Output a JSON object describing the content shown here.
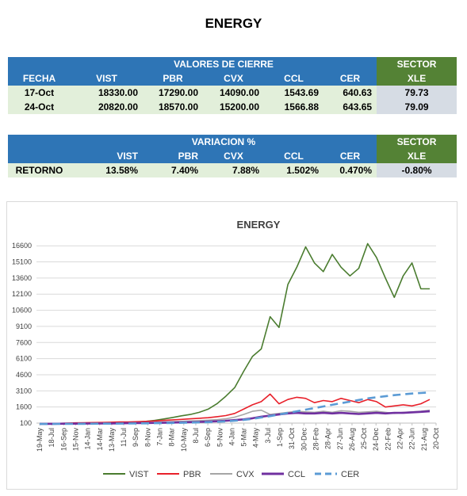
{
  "page_title": "ENERGY",
  "cierre": {
    "group_header": "VALORES DE CIERRE",
    "sector_header": "SECTOR",
    "columns": [
      "FECHA",
      "VIST",
      "PBR",
      "CVX",
      "CCL",
      "CER"
    ],
    "sector_column": "XLE",
    "rows": [
      {
        "fecha": "17-Oct",
        "vist": "18330.00",
        "pbr": "17290.00",
        "cvx": "14090.00",
        "ccl": "1543.69",
        "cer": "640.63",
        "xle": "79.73"
      },
      {
        "fecha": "24-Oct",
        "vist": "20820.00",
        "pbr": "18570.00",
        "cvx": "15200.00",
        "ccl": "1566.88",
        "cer": "643.65",
        "xle": "79.09"
      }
    ]
  },
  "variacion": {
    "group_header": "VARIACION %",
    "sector_header": "SECTOR",
    "columns": [
      "",
      "VIST",
      "PBR",
      "CVX",
      "CCL",
      "CER"
    ],
    "sector_column": "XLE",
    "row": {
      "label": "RETORNO",
      "vist": "13.58%",
      "pbr": "7.40%",
      "cvx": "7.88%",
      "ccl": "1.502%",
      "cer": "0.470%",
      "xle": "-0.80%"
    }
  },
  "colors": {
    "header_blue": "#2e75b6",
    "sector_green": "#548235",
    "row_green": "#e2efda",
    "row_gray": "#d6dce4"
  },
  "chart_data": {
    "type": "line",
    "title": "ENERGY",
    "ylim": [
      100,
      17500
    ],
    "yticks": [
      100,
      1600,
      3100,
      4600,
      6100,
      7600,
      9100,
      10600,
      12100,
      13600,
      15100,
      16600
    ],
    "xticks": [
      "19-May",
      "18-Jul",
      "16-Sep",
      "15-Nov",
      "14-Jan",
      "14-Mar",
      "13-May",
      "11-Jul",
      "9-Sep",
      "8-Nov",
      "7-Jan",
      "8-Mar",
      "10-May",
      "8-Jul",
      "6-Sep",
      "5-Nov",
      "4-Jan",
      "5-Mar",
      "4-May",
      "3-Jul",
      "1-Sep",
      "31-Oct",
      "30-Dec",
      "28-Feb",
      "28-Apr",
      "27-Jun",
      "26-Aug",
      "25-Oct",
      "24-Dec",
      "22-Feb",
      "22-Apr",
      "22-Jun",
      "21-Aug",
      "20-Oct"
    ],
    "grid": true,
    "legend_position": "bottom",
    "series": [
      {
        "name": "VIST",
        "color": "#4a7c2f",
        "dash": "",
        "width": 1.6,
        "values": [
          50,
          55,
          60,
          70,
          80,
          90,
          100,
          120,
          140,
          160,
          180,
          200,
          260,
          350,
          480,
          620,
          780,
          900,
          1100,
          1400,
          1900,
          2600,
          3400,
          4900,
          6300,
          7000,
          10000,
          9000,
          13000,
          14600,
          16500,
          15000,
          14200,
          15800,
          14600,
          13800,
          14500,
          16800,
          15500,
          13600,
          11800,
          13800,
          15000,
          12600,
          12600
        ]
      },
      {
        "name": "PBR",
        "color": "#e8202a",
        "dash": "",
        "width": 1.6,
        "values": [
          50,
          60,
          70,
          90,
          120,
          130,
          150,
          160,
          180,
          200,
          210,
          230,
          260,
          300,
          350,
          400,
          450,
          500,
          550,
          600,
          700,
          800,
          1000,
          1400,
          1800,
          2100,
          2800,
          1900,
          2300,
          2500,
          2400,
          2000,
          2200,
          2100,
          2400,
          2200,
          2000,
          2300,
          2100,
          1600,
          1700,
          1800,
          1700,
          1900,
          2300
        ]
      },
      {
        "name": "CVX",
        "color": "#a6a6a6",
        "dash": "",
        "width": 1.6,
        "values": [
          40,
          45,
          50,
          55,
          60,
          70,
          80,
          90,
          100,
          110,
          120,
          130,
          150,
          170,
          200,
          230,
          260,
          300,
          330,
          370,
          420,
          500,
          650,
          900,
          1200,
          1300,
          900,
          1000,
          1100,
          1200,
          1150,
          1100,
          1200,
          1100,
          1250,
          1200,
          1100,
          1150,
          1200,
          1100,
          1000,
          1100,
          1150,
          1200,
          1300
        ]
      },
      {
        "name": "CCL",
        "color": "#7030a0",
        "dash": "",
        "width": 2.6,
        "values": [
          30,
          35,
          40,
          45,
          50,
          55,
          60,
          65,
          70,
          80,
          90,
          100,
          110,
          120,
          130,
          150,
          170,
          190,
          210,
          240,
          270,
          320,
          380,
          450,
          550,
          700,
          800,
          900,
          1000,
          1050,
          1000,
          1000,
          1050,
          1000,
          1050,
          1000,
          950,
          1000,
          1050,
          1000,
          1050,
          1050,
          1100,
          1150,
          1200
        ]
      },
      {
        "name": "CER",
        "color": "#5b9bd5",
        "dash": "10,6",
        "width": 2.6,
        "values": [
          20,
          22,
          25,
          28,
          31,
          35,
          40,
          45,
          50,
          55,
          60,
          70,
          80,
          90,
          100,
          115,
          130,
          150,
          170,
          190,
          220,
          260,
          320,
          400,
          500,
          620,
          750,
          900,
          1050,
          1200,
          1350,
          1500,
          1650,
          1800,
          1950,
          2100,
          2250,
          2400,
          2500,
          2600,
          2700,
          2780,
          2850,
          2900,
          2950
        ]
      }
    ]
  }
}
